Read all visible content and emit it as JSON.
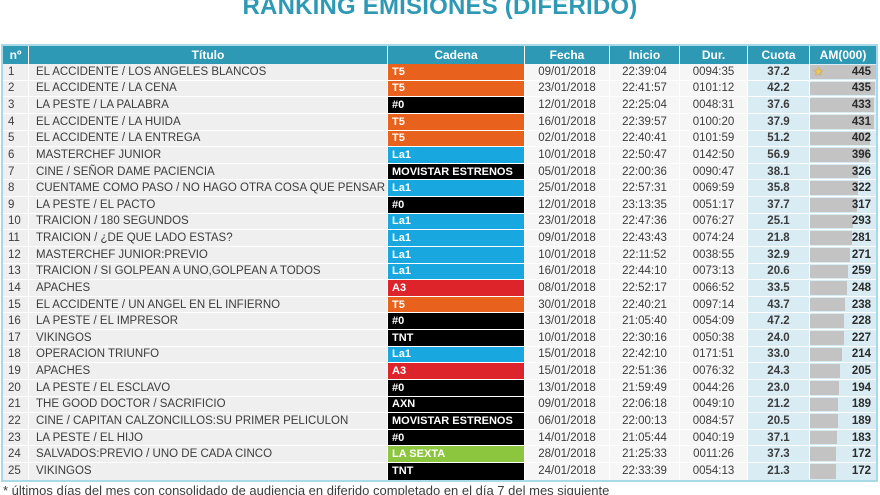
{
  "page_title": "RANKING EMISIONES (DIFERIDO)",
  "footnote": "* últimos días del mes con consolidado de audiencia en diferido completado en el día 7 del mes siguiente",
  "colors": {
    "accent_teal": "#2E99B4",
    "bar_gray": "#C3C3C3",
    "blue_col_bg": "#D9ECF4",
    "row_gray_bg": "#EFEFEF",
    "table_border": "#A7D9E7",
    "star_gold": "#EDC75B"
  },
  "channel_colors": {
    "T5": "#E8621D",
    "La1": "#19A7E0",
    "A3": "#DD242B",
    "LA SEXTA": "#8CC63F",
    "#0": "#000000",
    "TNT": "#000000",
    "AXN": "#000000",
    "MOVISTAR ESTRENOS": "#000000"
  },
  "chart_data": {
    "type": "table",
    "title": "RANKING EMISIONES (DIFERIDO)",
    "columns": [
      "nº",
      "Título",
      "Cadena",
      "Fecha",
      "Inicio",
      "Dur.",
      "Cuota",
      "AM(000)"
    ],
    "am_bar_max": 445,
    "rows": [
      {
        "n": "1",
        "titulo": "EL ACCIDENTE / LOS ANGELES BLANCOS",
        "cadena": "T5",
        "fecha": "09/01/2018",
        "inicio": "22:39:04",
        "dur": "0094:35",
        "cuota": "37.2",
        "am": 445,
        "star": true
      },
      {
        "n": "2",
        "titulo": "EL ACCIDENTE / LA CENA",
        "cadena": "T5",
        "fecha": "23/01/2018",
        "inicio": "22:41:57",
        "dur": "0101:12",
        "cuota": "42.2",
        "am": 435,
        "star": false
      },
      {
        "n": "3",
        "titulo": "LA PESTE / LA PALABRA",
        "cadena": "#0",
        "fecha": "12/01/2018",
        "inicio": "22:25:04",
        "dur": "0048:31",
        "cuota": "37.6",
        "am": 433,
        "star": false
      },
      {
        "n": "4",
        "titulo": "EL ACCIDENTE / LA HUIDA",
        "cadena": "T5",
        "fecha": "16/01/2018",
        "inicio": "22:39:57",
        "dur": "0100:20",
        "cuota": "37.9",
        "am": 431,
        "star": false
      },
      {
        "n": "5",
        "titulo": "EL ACCIDENTE / LA ENTREGA",
        "cadena": "T5",
        "fecha": "02/01/2018",
        "inicio": "22:40:41",
        "dur": "0101:59",
        "cuota": "51.2",
        "am": 402,
        "star": false
      },
      {
        "n": "6",
        "titulo": "MASTERCHEF JUNIOR",
        "cadena": "La1",
        "fecha": "10/01/2018",
        "inicio": "22:50:47",
        "dur": "0142:50",
        "cuota": "56.9",
        "am": 396,
        "star": false
      },
      {
        "n": "7",
        "titulo": "CINE / SEÑOR DAME PACIENCIA",
        "cadena": "MOVISTAR ESTRENOS",
        "fecha": "05/01/2018",
        "inicio": "22:00:36",
        "dur": "0090:47",
        "cuota": "38.1",
        "am": 326,
        "star": false
      },
      {
        "n": "8",
        "titulo": "CUENTAME COMO PASO / NO HAGO OTRA COSA QUE PENSAR EN TI",
        "cadena": "La1",
        "fecha": "25/01/2018",
        "inicio": "22:57:31",
        "dur": "0069:59",
        "cuota": "35.8",
        "am": 322,
        "star": false
      },
      {
        "n": "9",
        "titulo": "LA PESTE / EL PACTO",
        "cadena": "#0",
        "fecha": "12/01/2018",
        "inicio": "23:13:35",
        "dur": "0051:17",
        "cuota": "37.7",
        "am": 317,
        "star": false
      },
      {
        "n": "10",
        "titulo": "TRAICION / 180 SEGUNDOS",
        "cadena": "La1",
        "fecha": "23/01/2018",
        "inicio": "22:47:36",
        "dur": "0076:27",
        "cuota": "25.1",
        "am": 293,
        "star": false
      },
      {
        "n": "11",
        "titulo": "TRAICION / ¿DE QUE LADO ESTAS?",
        "cadena": "La1",
        "fecha": "09/01/2018",
        "inicio": "22:43:43",
        "dur": "0074:24",
        "cuota": "21.8",
        "am": 281,
        "star": false
      },
      {
        "n": "12",
        "titulo": "MASTERCHEF JUNIOR:PREVIO",
        "cadena": "La1",
        "fecha": "10/01/2018",
        "inicio": "22:11:52",
        "dur": "0038:55",
        "cuota": "32.9",
        "am": 271,
        "star": false
      },
      {
        "n": "13",
        "titulo": "TRAICION / SI GOLPEAN A UNO,GOLPEAN A TODOS",
        "cadena": "La1",
        "fecha": "16/01/2018",
        "inicio": "22:44:10",
        "dur": "0073:13",
        "cuota": "20.6",
        "am": 259,
        "star": false
      },
      {
        "n": "14",
        "titulo": "APACHES",
        "cadena": "A3",
        "fecha": "08/01/2018",
        "inicio": "22:52:17",
        "dur": "0066:52",
        "cuota": "33.5",
        "am": 248,
        "star": false
      },
      {
        "n": "15",
        "titulo": "EL ACCIDENTE / UN ANGEL EN EL INFIERNO",
        "cadena": "T5",
        "fecha": "30/01/2018",
        "inicio": "22:40:21",
        "dur": "0097:14",
        "cuota": "43.7",
        "am": 238,
        "star": false
      },
      {
        "n": "16",
        "titulo": "LA PESTE / EL IMPRESOR",
        "cadena": "#0",
        "fecha": "13/01/2018",
        "inicio": "21:05:40",
        "dur": "0054:09",
        "cuota": "47.2",
        "am": 228,
        "star": false
      },
      {
        "n": "17",
        "titulo": "VIKINGOS",
        "cadena": "TNT",
        "fecha": "10/01/2018",
        "inicio": "22:30:16",
        "dur": "0050:38",
        "cuota": "24.0",
        "am": 227,
        "star": false
      },
      {
        "n": "18",
        "titulo": "OPERACION TRIUNFO",
        "cadena": "La1",
        "fecha": "15/01/2018",
        "inicio": "22:42:10",
        "dur": "0171:51",
        "cuota": "33.0",
        "am": 214,
        "star": false
      },
      {
        "n": "19",
        "titulo": "APACHES",
        "cadena": "A3",
        "fecha": "15/01/2018",
        "inicio": "22:51:36",
        "dur": "0076:32",
        "cuota": "24.3",
        "am": 205,
        "star": false
      },
      {
        "n": "20",
        "titulo": "LA PESTE / EL ESCLAVO",
        "cadena": "#0",
        "fecha": "13/01/2018",
        "inicio": "21:59:49",
        "dur": "0044:26",
        "cuota": "23.0",
        "am": 194,
        "star": false
      },
      {
        "n": "21",
        "titulo": "THE GOOD DOCTOR / SACRIFICIO",
        "cadena": "AXN",
        "fecha": "09/01/2018",
        "inicio": "22:06:18",
        "dur": "0049:10",
        "cuota": "21.2",
        "am": 189,
        "star": false
      },
      {
        "n": "22",
        "titulo": "CINE / CAPITAN CALZONCILLOS:SU PRIMER PELICULON",
        "cadena": "MOVISTAR ESTRENOS",
        "fecha": "06/01/2018",
        "inicio": "22:00:13",
        "dur": "0084:57",
        "cuota": "20.5",
        "am": 189,
        "star": false
      },
      {
        "n": "23",
        "titulo": "LA PESTE / EL HIJO",
        "cadena": "#0",
        "fecha": "14/01/2018",
        "inicio": "21:05:44",
        "dur": "0040:19",
        "cuota": "37.1",
        "am": 183,
        "star": false
      },
      {
        "n": "24",
        "titulo": "SALVADOS:PREVIO / UNO DE CADA CINCO",
        "cadena": "LA SEXTA",
        "fecha": "28/01/2018",
        "inicio": "21:25:33",
        "dur": "0011:26",
        "cuota": "37.3",
        "am": 172,
        "star": false
      },
      {
        "n": "25",
        "titulo": "VIKINGOS",
        "cadena": "TNT",
        "fecha": "24/01/2018",
        "inicio": "22:33:39",
        "dur": "0054:13",
        "cuota": "21.3",
        "am": 172,
        "star": false
      }
    ]
  }
}
